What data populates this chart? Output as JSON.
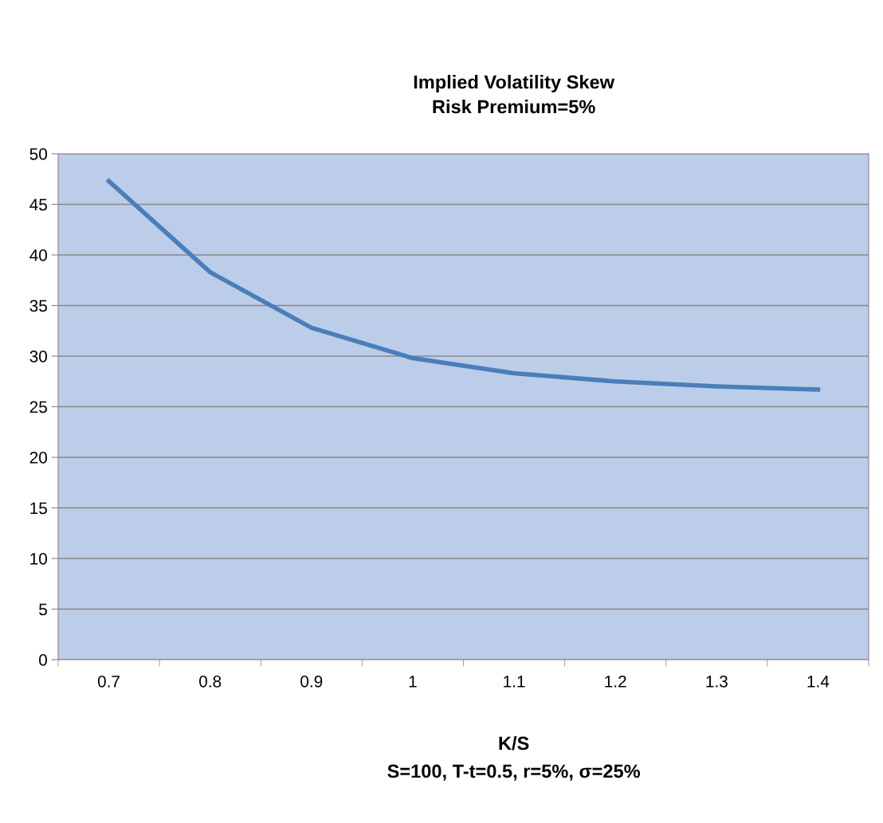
{
  "chart_data": {
    "type": "line",
    "title": "Implied Volatility Skew",
    "subtitle": "Risk Premium=5%",
    "xlabel": "K/S",
    "annotations": [
      "S=100, T-t=0.5, r=5%, σ=25%"
    ],
    "categories": [
      "0.7",
      "0.8",
      "0.9",
      "1",
      "1.1",
      "1.2",
      "1.3",
      "1.4"
    ],
    "series": [
      {
        "color": "#4a7ebb",
        "values": [
          47.3,
          38.3,
          32.8,
          29.8,
          28.3,
          27.5,
          27.0,
          26.7
        ]
      }
    ],
    "ylim": [
      0,
      50
    ],
    "yticks": [
      0,
      5,
      10,
      15,
      20,
      25,
      30,
      35,
      40,
      45,
      50
    ],
    "grid": "y",
    "line_style": "solid",
    "marker": "none"
  }
}
